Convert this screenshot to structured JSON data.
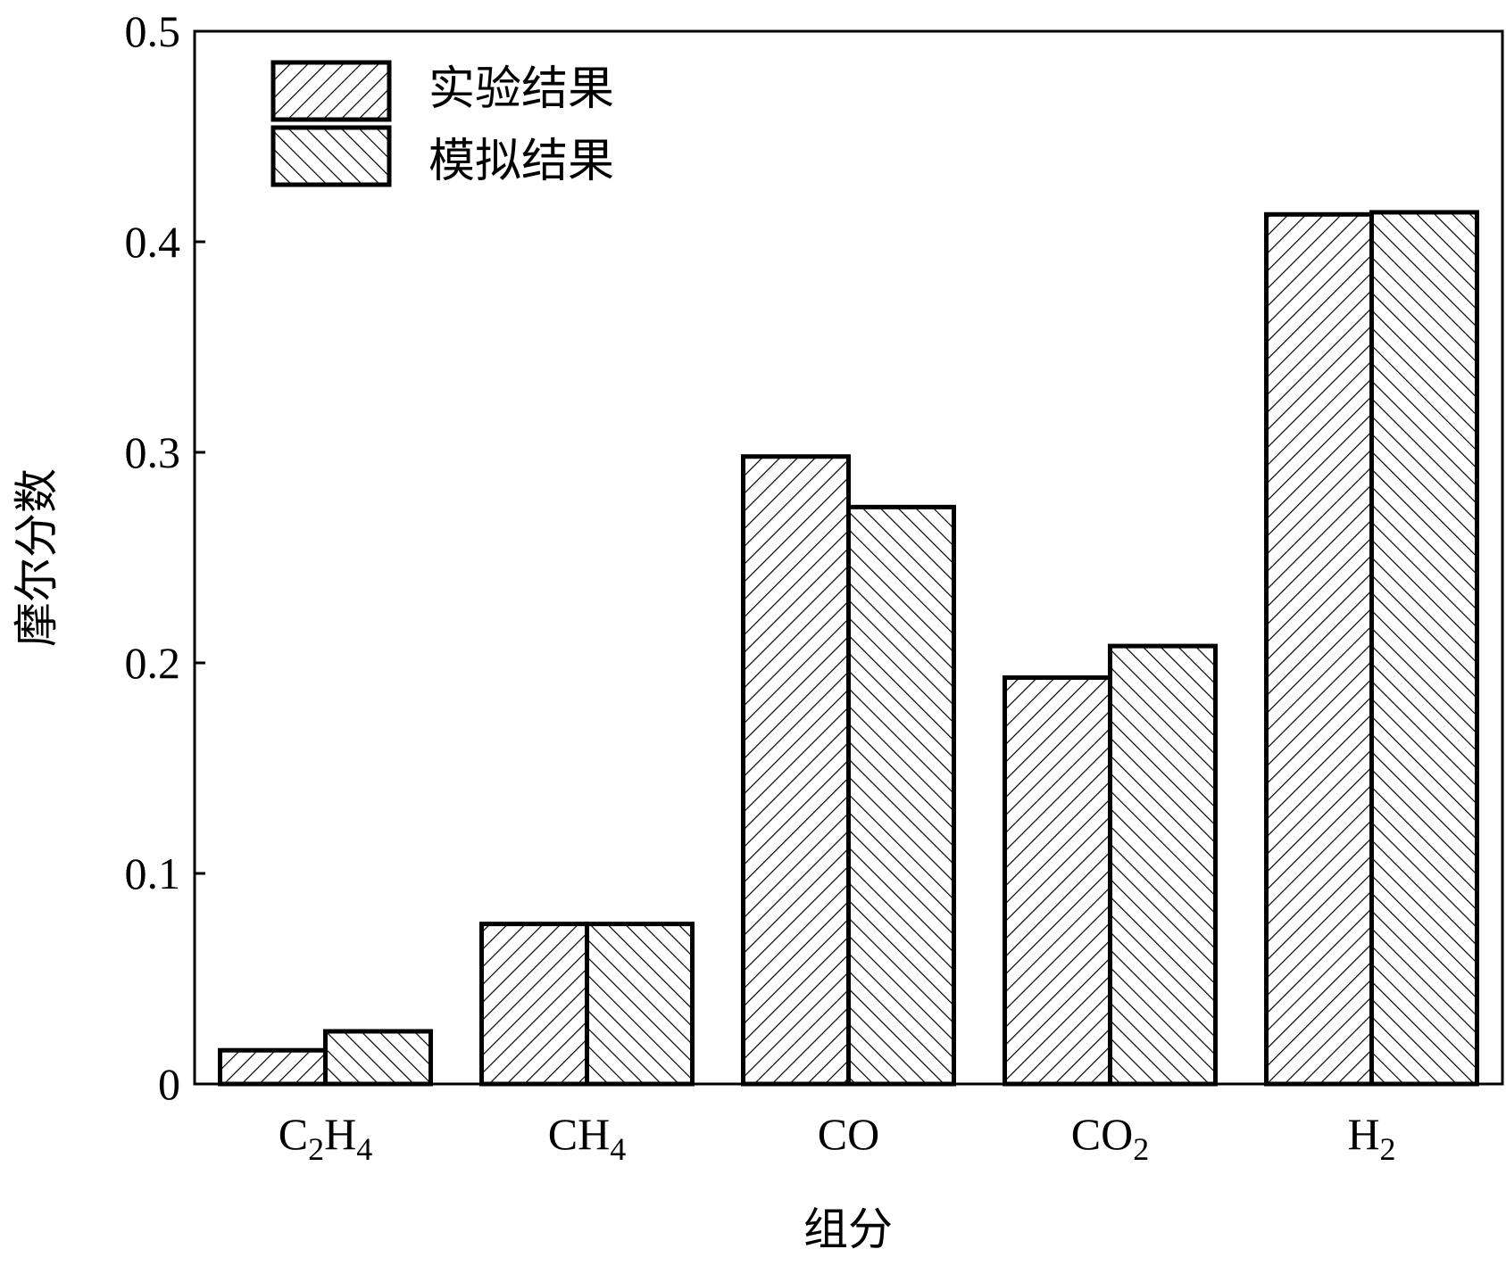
{
  "chart_data": {
    "type": "bar",
    "xlabel": "组分",
    "ylabel": "摩尔分数",
    "ylim": [
      0,
      0.5
    ],
    "yticks": [
      "0",
      "0.1",
      "0.2",
      "0.3",
      "0.4",
      "0.5"
    ],
    "categories": [
      {
        "main": "C",
        "sub1": "2",
        "mid": "H",
        "sub2": "4"
      },
      {
        "main": "CH",
        "sub1": "4",
        "mid": "",
        "sub2": ""
      },
      {
        "main": "CO",
        "sub1": "",
        "mid": "",
        "sub2": ""
      },
      {
        "main": "CO",
        "sub1": "2",
        "mid": "",
        "sub2": ""
      },
      {
        "main": "H",
        "sub1": "2",
        "mid": "",
        "sub2": ""
      }
    ],
    "series": [
      {
        "name": "实验结果",
        "hatch": "forward-diagonal",
        "values": [
          0.016,
          0.076,
          0.298,
          0.193,
          0.413
        ]
      },
      {
        "name": "模拟结果",
        "hatch": "backward-diagonal",
        "values": [
          0.025,
          0.076,
          0.274,
          0.208,
          0.414
        ]
      }
    ],
    "legend_position": "top-left",
    "grid": false
  }
}
